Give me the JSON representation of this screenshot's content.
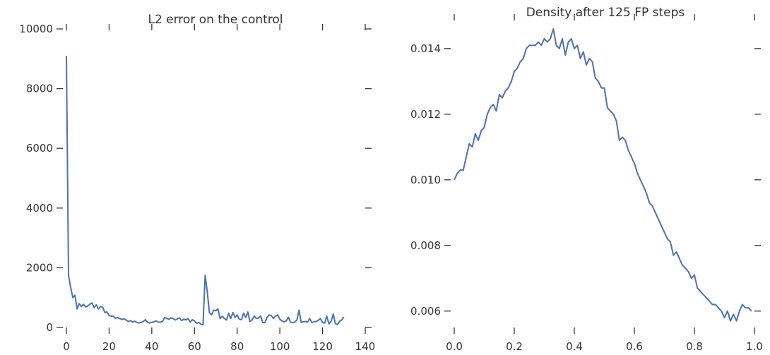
{
  "chart_data": [
    {
      "type": "line",
      "title": "L2 error on the control",
      "xlabel": "",
      "ylabel": "",
      "xlim": [
        0,
        140
      ],
      "ylim": [
        0,
        10000
      ],
      "xticks": [
        0,
        20,
        40,
        60,
        80,
        100,
        120,
        140
      ],
      "yticks": [
        0,
        2000,
        4000,
        6000,
        8000,
        10000
      ],
      "xtick_labels": [
        "0",
        "20",
        "40",
        "60",
        "80",
        "100",
        "120",
        "140"
      ],
      "ytick_labels": [
        "0",
        "2000",
        "4000",
        "6000",
        "8000",
        "10000"
      ],
      "grid": false,
      "color": "#4c72b0",
      "x": [
        0,
        1,
        2,
        3,
        4,
        5,
        6,
        7,
        8,
        9,
        10,
        11,
        12,
        13,
        14,
        15,
        16,
        17,
        18,
        19,
        20,
        21,
        22,
        23,
        24,
        25,
        26,
        27,
        28,
        29,
        30,
        31,
        32,
        33,
        34,
        35,
        36,
        37,
        38,
        39,
        40,
        41,
        42,
        43,
        44,
        45,
        46,
        47,
        48,
        49,
        50,
        51,
        52,
        53,
        54,
        55,
        56,
        57,
        58,
        59,
        60,
        61,
        62,
        63,
        64,
        65,
        66,
        67,
        68,
        69,
        70,
        71,
        72,
        73,
        74,
        75,
        76,
        77,
        78,
        79,
        80,
        81,
        82,
        83,
        84,
        85,
        86,
        87,
        88,
        89,
        90,
        91,
        92,
        93,
        94,
        95,
        96,
        97,
        98,
        99,
        100,
        101,
        102,
        103,
        104,
        105,
        106,
        107,
        108,
        109,
        110,
        111,
        112,
        113,
        114,
        115,
        116,
        117,
        118,
        119,
        120,
        121,
        122,
        123,
        124,
        125,
        126,
        127,
        128,
        129,
        130
      ],
      "y": [
        9100,
        1750,
        1350,
        1000,
        1080,
        620,
        800,
        700,
        780,
        690,
        720,
        780,
        820,
        660,
        760,
        620,
        700,
        680,
        500,
        520,
        400,
        380,
        370,
        310,
        330,
        300,
        270,
        290,
        250,
        200,
        230,
        180,
        210,
        170,
        150,
        170,
        200,
        260,
        180,
        150,
        170,
        190,
        220,
        180,
        180,
        200,
        330,
        310,
        270,
        320,
        300,
        250,
        290,
        320,
        230,
        280,
        250,
        300,
        180,
        260,
        220,
        140,
        170,
        110,
        90,
        1750,
        1200,
        500,
        420,
        580,
        560,
        620,
        300,
        380,
        300,
        250,
        480,
        300,
        500,
        340,
        420,
        280,
        260,
        480,
        330,
        520,
        200,
        260,
        380,
        300,
        320,
        380,
        160,
        160,
        340,
        420,
        400,
        300,
        380,
        420,
        280,
        220,
        190,
        220,
        340,
        180,
        160,
        180,
        250,
        580,
        170,
        190,
        200,
        180,
        300,
        160,
        190,
        200,
        240,
        300,
        160,
        150,
        380,
        120,
        200,
        450,
        130,
        100,
        210,
        250,
        350
      ]
    },
    {
      "type": "line",
      "title": "Density after 125 FP steps",
      "xlabel": "",
      "ylabel": "",
      "xlim": [
        0.0,
        1.0
      ],
      "ylim": [
        0.0055,
        0.0149
      ],
      "xticks": [
        0.0,
        0.2,
        0.4,
        0.6,
        0.8,
        1.0
      ],
      "yticks": [
        0.006,
        0.008,
        0.01,
        0.012,
        0.014
      ],
      "xtick_labels": [
        "0.0",
        "0.2",
        "0.4",
        "0.6",
        "0.8",
        "1.0"
      ],
      "ytick_labels": [
        "0.006",
        "0.008",
        "0.010",
        "0.012",
        "0.014"
      ],
      "grid": false,
      "color": "#4c72b0",
      "x": [
        0.0,
        0.01,
        0.02,
        0.03,
        0.04,
        0.05,
        0.06,
        0.07,
        0.08,
        0.09,
        0.1,
        0.11,
        0.12,
        0.13,
        0.14,
        0.15,
        0.16,
        0.17,
        0.18,
        0.19,
        0.2,
        0.21,
        0.22,
        0.23,
        0.24,
        0.25,
        0.26,
        0.27,
        0.28,
        0.29,
        0.3,
        0.31,
        0.32,
        0.33,
        0.34,
        0.35,
        0.36,
        0.37,
        0.38,
        0.39,
        0.4,
        0.41,
        0.42,
        0.43,
        0.44,
        0.45,
        0.46,
        0.47,
        0.48,
        0.49,
        0.5,
        0.51,
        0.52,
        0.53,
        0.54,
        0.55,
        0.56,
        0.57,
        0.58,
        0.59,
        0.6,
        0.61,
        0.62,
        0.63,
        0.64,
        0.65,
        0.66,
        0.67,
        0.68,
        0.69,
        0.7,
        0.71,
        0.72,
        0.73,
        0.74,
        0.75,
        0.76,
        0.77,
        0.78,
        0.79,
        0.8,
        0.81,
        0.82,
        0.83,
        0.84,
        0.85,
        0.86,
        0.87,
        0.88,
        0.89,
        0.9,
        0.91,
        0.92,
        0.93,
        0.94,
        0.95,
        0.96,
        0.97,
        0.98,
        0.99
      ],
      "y": [
        0.01,
        0.0102,
        0.0103,
        0.0103,
        0.0107,
        0.0111,
        0.011,
        0.0114,
        0.0112,
        0.0115,
        0.0116,
        0.012,
        0.0122,
        0.0123,
        0.0121,
        0.0126,
        0.0125,
        0.0127,
        0.0128,
        0.013,
        0.0133,
        0.0134,
        0.0136,
        0.0137,
        0.014,
        0.0141,
        0.0141,
        0.0141,
        0.0142,
        0.0141,
        0.0143,
        0.0142,
        0.0143,
        0.0146,
        0.0141,
        0.014,
        0.0143,
        0.0138,
        0.0142,
        0.0143,
        0.014,
        0.0141,
        0.0137,
        0.0139,
        0.0135,
        0.0137,
        0.0136,
        0.0131,
        0.013,
        0.0128,
        0.0128,
        0.0122,
        0.0121,
        0.012,
        0.0118,
        0.0112,
        0.0113,
        0.0112,
        0.0109,
        0.0107,
        0.0105,
        0.0102,
        0.01,
        0.0098,
        0.0096,
        0.0093,
        0.0092,
        0.009,
        0.0088,
        0.0086,
        0.0084,
        0.0082,
        0.0081,
        0.0077,
        0.0078,
        0.0076,
        0.0074,
        0.0073,
        0.0072,
        0.007,
        0.0071,
        0.0067,
        0.0066,
        0.0065,
        0.0064,
        0.0063,
        0.0062,
        0.0062,
        0.0061,
        0.006,
        0.0058,
        0.006,
        0.0057,
        0.0059,
        0.0057,
        0.006,
        0.0062,
        0.0061,
        0.0061,
        0.006
      ]
    }
  ]
}
